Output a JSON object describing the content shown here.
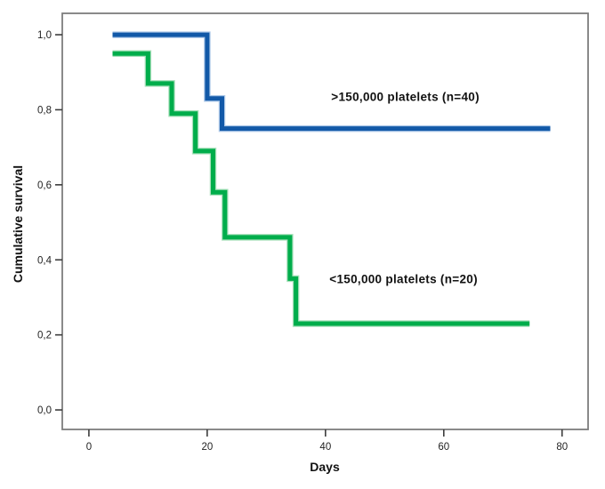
{
  "figure": {
    "background": "#ffffff",
    "frame_color": "#7d7d7d"
  },
  "chart_data": {
    "type": "line",
    "subtype": "kaplan-meier-step",
    "title": "",
    "xlabel": "Days",
    "ylabel": "Cumulative survival",
    "grid": false,
    "legend_position": "inline-annotations",
    "xlim": [
      -4.5,
      84.4
    ],
    "ylim": [
      -0.052,
      1.057
    ],
    "xticks": [
      0,
      20,
      40,
      60,
      80
    ],
    "xtick_labels": [
      "0",
      "20",
      "40",
      "60",
      "80"
    ],
    "yticks": [
      0.0,
      0.2,
      0.4,
      0.6,
      0.8,
      1.0
    ],
    "ytick_labels": [
      "0,0",
      "0,2",
      "0,4",
      "0,6",
      "0,8",
      "1,0"
    ],
    "series": [
      {
        "name": ">150,000 platelets (n=40)",
        "color": "#1259A8",
        "halo_color": "#adc8e8",
        "points": [
          [
            4,
            1.0
          ],
          [
            20,
            1.0
          ],
          [
            20,
            0.83
          ],
          [
            22.5,
            0.83
          ],
          [
            22.5,
            0.75
          ],
          [
            78,
            0.75
          ]
        ]
      },
      {
        "name": "<150,000 platelets (n=20)",
        "color": "#00AD4B",
        "halo_color": "#a9e0bb",
        "points": [
          [
            4,
            0.95
          ],
          [
            10,
            0.95
          ],
          [
            10,
            0.87
          ],
          [
            14,
            0.87
          ],
          [
            14,
            0.79
          ],
          [
            18,
            0.79
          ],
          [
            18,
            0.69
          ],
          [
            21,
            0.69
          ],
          [
            21,
            0.58
          ],
          [
            23,
            0.58
          ],
          [
            23,
            0.46
          ],
          [
            34,
            0.46
          ],
          [
            34,
            0.35
          ],
          [
            35,
            0.35
          ],
          [
            35,
            0.23
          ],
          [
            74.5,
            0.23
          ]
        ]
      }
    ],
    "annotations": [
      {
        "text": ">150,000 platelets (n=40)",
        "day": 53.5,
        "survival": 0.836
      },
      {
        "text": "<150,000 platelets (n=20)",
        "day": 53.2,
        "survival": 0.35
      }
    ]
  }
}
